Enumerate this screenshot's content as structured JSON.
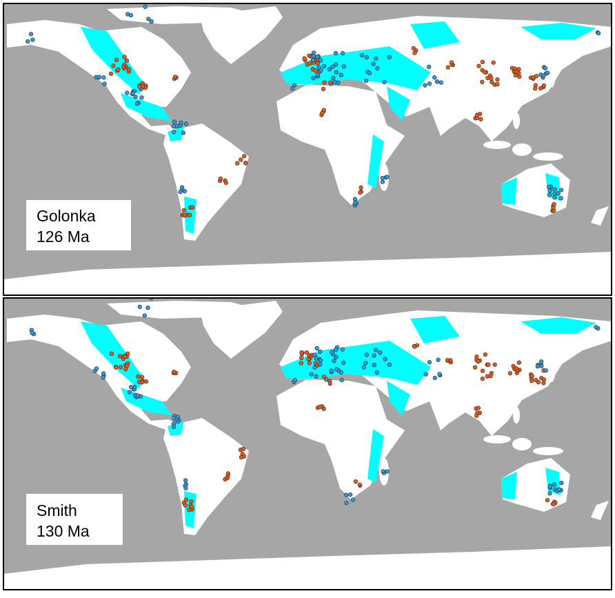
{
  "panels": [
    {
      "model": "Golonka",
      "age": "126 Ma"
    },
    {
      "model": "Smith",
      "age": "130 Ma"
    }
  ]
}
